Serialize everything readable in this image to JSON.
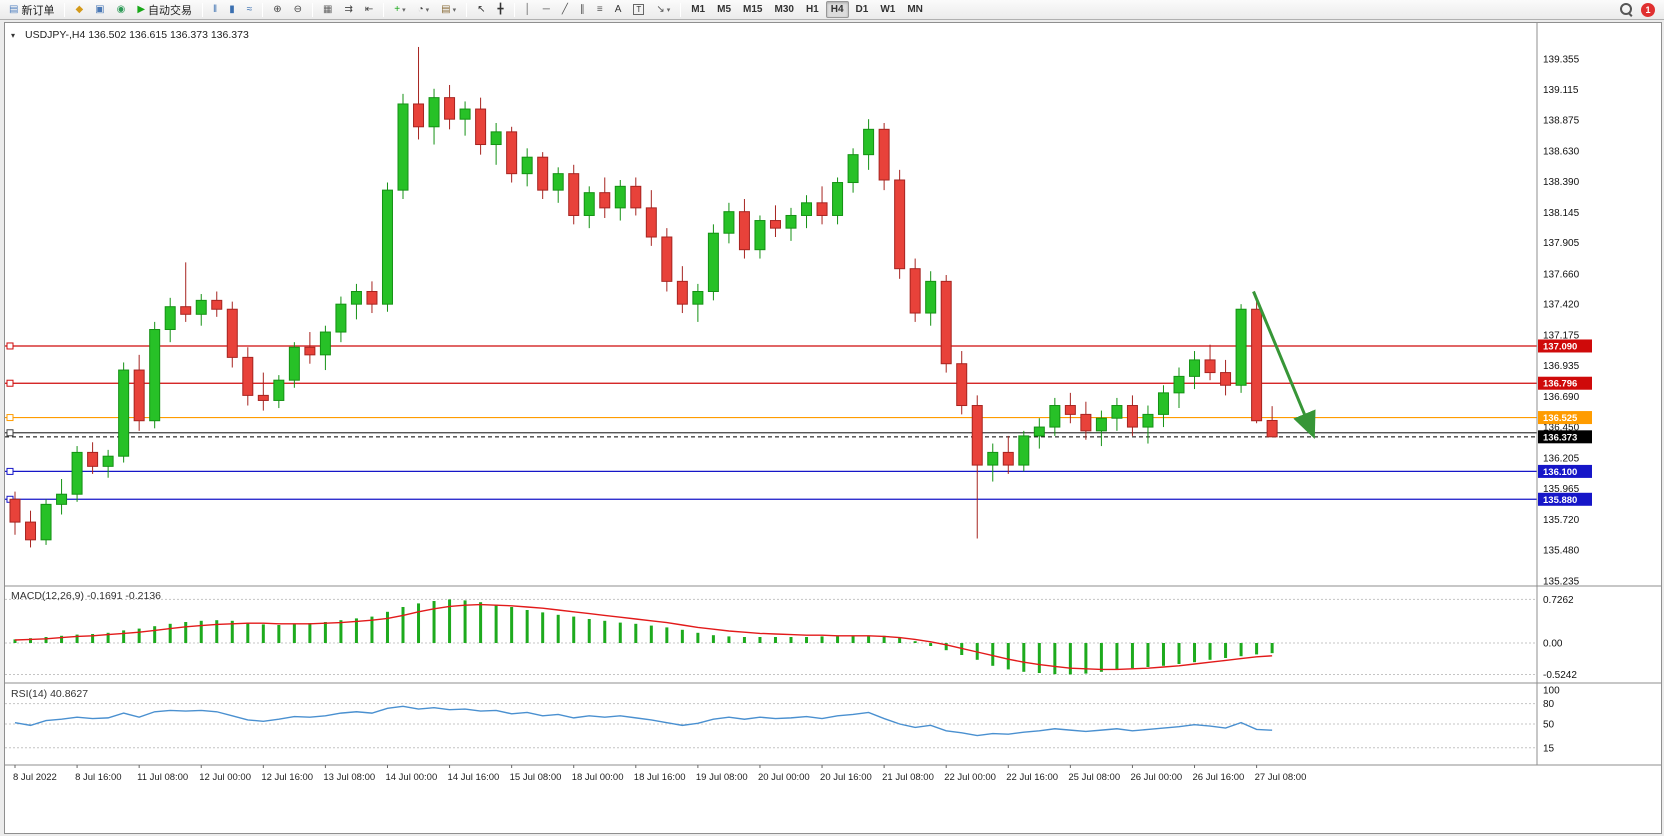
{
  "toolbar": {
    "notification_count": "1",
    "groups": [
      {
        "buttons": [
          {
            "name": "new-order-button",
            "icon": "new-order-icon",
            "glyph": "▤",
            "color": "#4f7fbf",
            "label": "新订单"
          }
        ]
      },
      {
        "buttons": [
          {
            "name": "charts-menu-button",
            "icon": "charts-menu-icon",
            "glyph": "◆",
            "color": "#d49a1a"
          },
          {
            "name": "profiles-button",
            "icon": "profiles-icon",
            "glyph": "▣",
            "color": "#4a78b5"
          },
          {
            "name": "data-window-button",
            "icon": "data-window-icon",
            "glyph": "◉",
            "color": "#2e9b57"
          },
          {
            "name": "autotrading-button",
            "icon": "autotrading-icon",
            "glyph": "▶",
            "color": "#18a818",
            "label": "自动交易"
          }
        ]
      },
      {
        "buttons": [
          {
            "name": "bar-chart-button",
            "icon": "bars-chart-icon",
            "glyph": "‖",
            "color": "#3a6fb0"
          },
          {
            "name": "candlestick-chart-button",
            "icon": "candlestick-chart-icon",
            "glyph": "▮",
            "color": "#3a6fb0"
          },
          {
            "name": "line-chart-button",
            "icon": "line-chart-icon",
            "glyph": "≈",
            "color": "#3a6fb0"
          }
        ]
      },
      {
        "buttons": [
          {
            "name": "zoom-in-button",
            "icon": "zoom-in-icon",
            "glyph": "⊕",
            "color": "#444444"
          },
          {
            "name": "zoom-out-button",
            "icon": "zoom-out-icon",
            "glyph": "⊖",
            "color": "#444444"
          }
        ]
      },
      {
        "buttons": [
          {
            "name": "tile-windows-button",
            "icon": "tile-windows-icon",
            "glyph": "▦",
            "color": "#666666"
          },
          {
            "name": "auto-scroll-button",
            "icon": "auto-scroll-icon",
            "glyph": "⇉",
            "color": "#444444"
          },
          {
            "name": "chart-shift-button",
            "icon": "chart-shift-icon",
            "glyph": "⇤",
            "color": "#444444"
          }
        ]
      },
      {
        "buttons": [
          {
            "name": "indicators-button",
            "icon": "indicators-icon",
            "glyph": "+",
            "color": "#18a818",
            "dropdown": true
          },
          {
            "name": "periods-button",
            "icon": "periods-icon",
            "glyph": "◔",
            "color": "#444444",
            "dropdown": true
          },
          {
            "name": "templates-button",
            "icon": "templates-icon",
            "glyph": "▤",
            "color": "#8a6d3b",
            "dropdown": true
          }
        ]
      },
      {
        "buttons": [
          {
            "name": "cursor-button",
            "icon": "cursor-icon",
            "glyph": "↖",
            "color": "#333333"
          },
          {
            "name": "crosshair-button",
            "icon": "crosshair-icon",
            "glyph": "╋",
            "color": "#333333"
          }
        ]
      },
      {
        "buttons": [
          {
            "name": "vertical-line-button",
            "icon": "vertical-line-icon",
            "glyph": "│",
            "color": "#555555"
          },
          {
            "name": "horizontal-line-button",
            "icon": "horizontal-line-icon",
            "glyph": "─",
            "color": "#555555"
          },
          {
            "name": "trendline-button",
            "icon": "trendline-icon",
            "glyph": "╱",
            "color": "#555555"
          },
          {
            "name": "channel-button",
            "icon": "channel-icon",
            "glyph": "∥",
            "color": "#555555"
          },
          {
            "name": "fibonacci-button",
            "icon": "fibonacci-icon",
            "glyph": "≡",
            "color": "#555555"
          },
          {
            "name": "text-button",
            "icon": "text-icon",
            "glyph": "A",
            "color": "#333333"
          },
          {
            "name": "label-button",
            "icon": "label-icon",
            "glyph": "T",
            "color": "#333333",
            "boxed": true
          },
          {
            "name": "arrows-button",
            "icon": "arrows-icon",
            "glyph": "↘",
            "color": "#555555",
            "dropdown": true
          }
        ]
      },
      {
        "buttons": [
          {
            "name": "timeframe-m1-button",
            "label": "M1"
          },
          {
            "name": "timeframe-m5-button",
            "label": "M5"
          },
          {
            "name": "timeframe-m15-button",
            "label": "M15"
          },
          {
            "name": "timeframe-m30-button",
            "label": "M30"
          },
          {
            "name": "timeframe-h1-button",
            "label": "H1"
          },
          {
            "name": "timeframe-h4-button",
            "label": "H4",
            "active": true
          },
          {
            "name": "timeframe-d1-button",
            "label": "D1"
          },
          {
            "name": "timeframe-w1-button",
            "label": "W1"
          },
          {
            "name": "timeframe-mn-button",
            "label": "MN"
          }
        ]
      }
    ]
  },
  "chart_data": {
    "type": "candlestick",
    "symbol": "USDJPY-",
    "timeframe": "H4",
    "symbol_line": "USDJPY-,H4  136.502 136.615 136.373 136.373",
    "ohlc": {
      "open": "136.502",
      "high": "136.615",
      "low": "136.373",
      "close": "136.373"
    },
    "up_fill": "#27c127",
    "up_stroke": "#149114",
    "down_fill": "#e8423a",
    "down_stroke": "#a62420",
    "candles": [
      [
        135.88,
        135.94,
        135.6,
        135.7
      ],
      [
        135.7,
        135.79,
        135.5,
        135.56
      ],
      [
        135.56,
        135.88,
        135.52,
        135.84
      ],
      [
        135.84,
        136.04,
        135.76,
        135.92
      ],
      [
        135.92,
        136.3,
        135.86,
        136.25
      ],
      [
        136.25,
        136.33,
        136.08,
        136.14
      ],
      [
        136.14,
        136.27,
        136.05,
        136.22
      ],
      [
        136.22,
        136.96,
        136.17,
        136.9
      ],
      [
        136.9,
        137.02,
        136.42,
        136.5
      ],
      [
        136.5,
        137.28,
        136.44,
        137.22
      ],
      [
        137.22,
        137.47,
        137.12,
        137.4
      ],
      [
        137.4,
        137.75,
        137.28,
        137.34
      ],
      [
        137.34,
        137.5,
        137.25,
        137.45
      ],
      [
        137.45,
        137.52,
        137.32,
        137.38
      ],
      [
        137.38,
        137.44,
        136.92,
        137.0
      ],
      [
        137.0,
        137.08,
        136.62,
        136.7
      ],
      [
        136.7,
        136.88,
        136.58,
        136.66
      ],
      [
        136.66,
        136.86,
        136.6,
        136.82
      ],
      [
        136.82,
        137.12,
        136.76,
        137.08
      ],
      [
        137.08,
        137.2,
        136.95,
        137.02
      ],
      [
        137.02,
        137.25,
        136.9,
        137.2
      ],
      [
        137.2,
        137.48,
        137.12,
        137.42
      ],
      [
        137.42,
        137.58,
        137.3,
        137.52
      ],
      [
        137.52,
        137.6,
        137.35,
        137.42
      ],
      [
        137.42,
        138.38,
        137.36,
        138.32
      ],
      [
        138.32,
        139.08,
        138.25,
        139.0
      ],
      [
        139.0,
        139.45,
        138.72,
        138.82
      ],
      [
        138.82,
        139.12,
        138.68,
        139.05
      ],
      [
        139.05,
        139.15,
        138.8,
        138.88
      ],
      [
        138.88,
        139.02,
        138.75,
        138.96
      ],
      [
        138.96,
        139.05,
        138.6,
        138.68
      ],
      [
        138.68,
        138.85,
        138.52,
        138.78
      ],
      [
        138.78,
        138.82,
        138.38,
        138.45
      ],
      [
        138.45,
        138.65,
        138.35,
        138.58
      ],
      [
        138.58,
        138.62,
        138.25,
        138.32
      ],
      [
        138.32,
        138.5,
        138.22,
        138.45
      ],
      [
        138.45,
        138.52,
        138.05,
        138.12
      ],
      [
        138.12,
        138.35,
        138.02,
        138.3
      ],
      [
        138.3,
        138.42,
        138.1,
        138.18
      ],
      [
        138.18,
        138.4,
        138.08,
        138.35
      ],
      [
        138.35,
        138.42,
        138.12,
        138.18
      ],
      [
        138.18,
        138.32,
        137.88,
        137.95
      ],
      [
        137.95,
        138.02,
        137.52,
        137.6
      ],
      [
        137.6,
        137.72,
        137.35,
        137.42
      ],
      [
        137.42,
        137.58,
        137.28,
        137.52
      ],
      [
        137.52,
        138.05,
        137.45,
        137.98
      ],
      [
        137.98,
        138.22,
        137.9,
        138.15
      ],
      [
        138.15,
        138.25,
        137.78,
        137.85
      ],
      [
        137.85,
        138.12,
        137.78,
        138.08
      ],
      [
        138.08,
        138.2,
        137.95,
        138.02
      ],
      [
        138.02,
        138.18,
        137.92,
        138.12
      ],
      [
        138.12,
        138.28,
        138.02,
        138.22
      ],
      [
        138.22,
        138.35,
        138.05,
        138.12
      ],
      [
        138.12,
        138.42,
        138.05,
        138.38
      ],
      [
        138.38,
        138.65,
        138.3,
        138.6
      ],
      [
        138.6,
        138.88,
        138.48,
        138.8
      ],
      [
        138.8,
        138.85,
        138.32,
        138.4
      ],
      [
        138.4,
        138.48,
        137.62,
        137.7
      ],
      [
        137.7,
        137.78,
        137.28,
        137.35
      ],
      [
        137.35,
        137.68,
        137.25,
        137.6
      ],
      [
        137.6,
        137.65,
        136.88,
        136.95
      ],
      [
        136.95,
        137.05,
        136.55,
        136.62
      ],
      [
        136.62,
        136.7,
        135.57,
        136.15
      ],
      [
        136.15,
        136.32,
        136.02,
        136.25
      ],
      [
        136.25,
        136.38,
        136.08,
        136.15
      ],
      [
        136.15,
        136.42,
        136.1,
        136.38
      ],
      [
        136.38,
        136.52,
        136.28,
        136.45
      ],
      [
        136.45,
        136.68,
        136.38,
        136.62
      ],
      [
        136.62,
        136.72,
        136.48,
        136.55
      ],
      [
        136.55,
        136.65,
        136.35,
        136.42
      ],
      [
        136.42,
        136.58,
        136.3,
        136.52
      ],
      [
        136.52,
        136.68,
        136.42,
        136.62
      ],
      [
        136.62,
        136.7,
        136.38,
        136.45
      ],
      [
        136.45,
        136.62,
        136.32,
        136.55
      ],
      [
        136.55,
        136.78,
        136.45,
        136.72
      ],
      [
        136.72,
        136.92,
        136.6,
        136.85
      ],
      [
        136.85,
        137.05,
        136.75,
        136.98
      ],
      [
        136.98,
        137.1,
        136.82,
        136.88
      ],
      [
        136.88,
        136.98,
        136.7,
        136.78
      ],
      [
        136.78,
        137.42,
        136.72,
        137.38
      ],
      [
        137.38,
        137.46,
        136.48,
        136.5
      ],
      [
        136.502,
        136.615,
        136.373,
        136.373
      ]
    ],
    "price_ticks": [
      "139.355",
      "139.115",
      "138.875",
      "138.630",
      "138.390",
      "138.145",
      "137.905",
      "137.660",
      "137.420",
      "137.175",
      "136.935",
      "136.690",
      "136.450",
      "136.205",
      "135.965",
      "135.720",
      "135.480",
      "135.235"
    ],
    "hlines": [
      {
        "price": 137.09,
        "label": "137.090",
        "color": "#cf0a0a"
      },
      {
        "price": 136.796,
        "label": "136.796",
        "color": "#cf0a0a"
      },
      {
        "price": 136.525,
        "label": "136.525",
        "color": "#ff9c00"
      },
      {
        "price": 136.405,
        "label": "",
        "color": "#3f3f3f"
      },
      {
        "price": 136.1,
        "label": "136.100",
        "color": "#1616c8"
      },
      {
        "price": 135.88,
        "label": "135.880",
        "color": "#1616c8"
      }
    ],
    "current_price": {
      "value": 136.373,
      "label": "136.373",
      "color": "#000000"
    },
    "arrow": {
      "bar_from": 79.8,
      "price_from": 137.52,
      "bar_to": 83.6,
      "price_to": 136.4,
      "color": "#379637"
    },
    "time_labels": [
      {
        "bar": 0,
        "text": "8 Jul 2022"
      },
      {
        "bar": 4,
        "text": "8 Jul 16:00"
      },
      {
        "bar": 8,
        "text": "11 Jul 08:00"
      },
      {
        "bar": 12,
        "text": "12 Jul 00:00"
      },
      {
        "bar": 16,
        "text": "12 Jul 16:00"
      },
      {
        "bar": 20,
        "text": "13 Jul 08:00"
      },
      {
        "bar": 24,
        "text": "14 Jul 00:00"
      },
      {
        "bar": 28,
        "text": "14 Jul 16:00"
      },
      {
        "bar": 32,
        "text": "15 Jul 08:00"
      },
      {
        "bar": 36,
        "text": "18 Jul 00:00"
      },
      {
        "bar": 40,
        "text": "18 Jul 16:00"
      },
      {
        "bar": 44,
        "text": "19 Jul 08:00"
      },
      {
        "bar": 48,
        "text": "20 Jul 00:00"
      },
      {
        "bar": 52,
        "text": "20 Jul 16:00"
      },
      {
        "bar": 56,
        "text": "21 Jul 08:00"
      },
      {
        "bar": 60,
        "text": "22 Jul 00:00"
      },
      {
        "bar": 64,
        "text": "22 Jul 16:00"
      },
      {
        "bar": 68,
        "text": "25 Jul 08:00"
      },
      {
        "bar": 72,
        "text": "26 Jul 00:00"
      },
      {
        "bar": 76,
        "text": "26 Jul 16:00"
      },
      {
        "bar": 80,
        "text": "27 Jul 08:00"
      }
    ],
    "macd": {
      "label": "MACD(12,26,9) -0.1691 -0.2136",
      "value": -0.1691,
      "signal_value": -0.2136,
      "scale_labels": [
        "0.7262",
        "0.00",
        "-0.5242"
      ],
      "scale_values": [
        0.7262,
        0,
        -0.5242
      ],
      "colors": {
        "histogram": "#1daa1d",
        "signal": "#e21a1a"
      },
      "histogram": [
        0.06,
        0.08,
        0.1,
        0.12,
        0.14,
        0.15,
        0.17,
        0.21,
        0.24,
        0.28,
        0.32,
        0.35,
        0.37,
        0.38,
        0.37,
        0.34,
        0.31,
        0.3,
        0.31,
        0.33,
        0.35,
        0.38,
        0.41,
        0.44,
        0.52,
        0.6,
        0.66,
        0.7,
        0.726,
        0.71,
        0.68,
        0.64,
        0.6,
        0.55,
        0.51,
        0.47,
        0.44,
        0.4,
        0.37,
        0.34,
        0.32,
        0.29,
        0.26,
        0.22,
        0.17,
        0.13,
        0.11,
        0.1,
        0.1,
        0.1,
        0.1,
        0.1,
        0.11,
        0.11,
        0.12,
        0.12,
        0.12,
        0.09,
        0.03,
        -0.05,
        -0.12,
        -0.2,
        -0.28,
        -0.38,
        -0.44,
        -0.48,
        -0.5,
        -0.52,
        -0.524,
        -0.51,
        -0.48,
        -0.45,
        -0.42,
        -0.4,
        -0.38,
        -0.35,
        -0.32,
        -0.28,
        -0.25,
        -0.22,
        -0.19,
        -0.1691
      ],
      "signal": [
        0.05,
        0.06,
        0.07,
        0.09,
        0.11,
        0.12,
        0.14,
        0.16,
        0.18,
        0.21,
        0.24,
        0.27,
        0.29,
        0.31,
        0.32,
        0.33,
        0.33,
        0.32,
        0.32,
        0.32,
        0.33,
        0.34,
        0.36,
        0.38,
        0.41,
        0.46,
        0.52,
        0.57,
        0.61,
        0.63,
        0.64,
        0.63,
        0.62,
        0.6,
        0.58,
        0.55,
        0.52,
        0.49,
        0.46,
        0.43,
        0.4,
        0.37,
        0.34,
        0.3,
        0.26,
        0.23,
        0.2,
        0.18,
        0.16,
        0.15,
        0.14,
        0.13,
        0.13,
        0.12,
        0.12,
        0.12,
        0.11,
        0.09,
        0.06,
        0.02,
        -0.03,
        -0.09,
        -0.15,
        -0.21,
        -0.27,
        -0.32,
        -0.36,
        -0.39,
        -0.42,
        -0.43,
        -0.44,
        -0.44,
        -0.43,
        -0.42,
        -0.4,
        -0.38,
        -0.35,
        -0.32,
        -0.29,
        -0.26,
        -0.23,
        -0.2136
      ]
    },
    "rsi": {
      "label": "RSI(14) 40.8627",
      "value": 40.8627,
      "color": "#4a90d0",
      "scale_labels": [
        "100",
        "80",
        "50",
        "15"
      ],
      "scale_values": [
        100,
        80,
        50,
        15
      ],
      "levels": [
        80,
        50,
        15
      ],
      "values": [
        52,
        48,
        55,
        57,
        60,
        58,
        59,
        66,
        60,
        68,
        70,
        69,
        70,
        68,
        62,
        56,
        54,
        57,
        61,
        60,
        62,
        66,
        68,
        66,
        73,
        76,
        72,
        74,
        71,
        72,
        69,
        70,
        65,
        67,
        62,
        64,
        59,
        62,
        60,
        62,
        59,
        56,
        52,
        48,
        51,
        57,
        60,
        57,
        60,
        58,
        59,
        61,
        58,
        62,
        64,
        67,
        58,
        50,
        45,
        48,
        40,
        37,
        33,
        36,
        35,
        38,
        40,
        43,
        41,
        39,
        41,
        43,
        40,
        42,
        44,
        46,
        49,
        47,
        44,
        52,
        42,
        40.86
      ]
    }
  }
}
